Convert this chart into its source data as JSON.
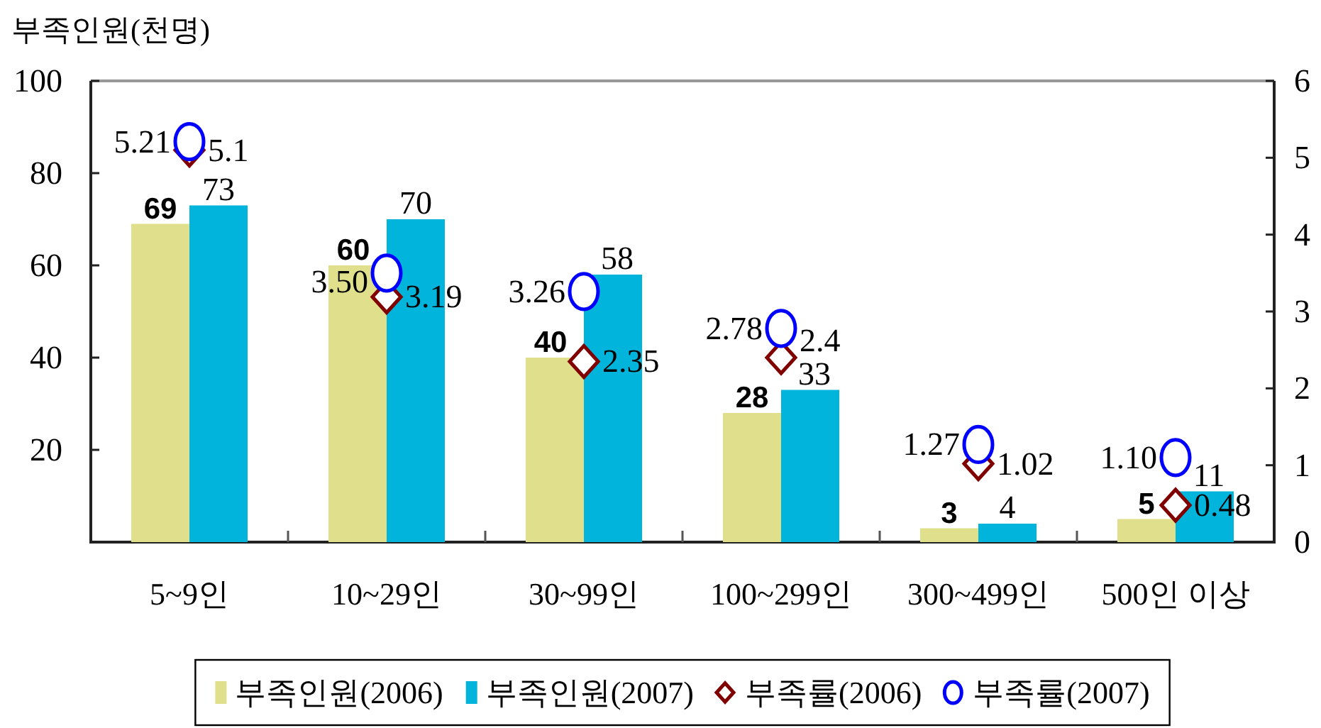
{
  "chart_data": {
    "type": "bar",
    "ylabel": "부족인원(천명)",
    "categories": [
      "5~9인",
      "10~29인",
      "30~99인",
      "100~299인",
      "300~499인",
      "500인 이상"
    ],
    "ylim": [
      0,
      100
    ],
    "yticks": [
      20,
      40,
      60,
      80,
      100
    ],
    "y2lim": [
      0,
      6
    ],
    "y2ticks": [
      0,
      1,
      2,
      3,
      4,
      5,
      6
    ],
    "legend": "bottom",
    "series": [
      {
        "name": "부족인원(2006)",
        "color": "#e0e08c",
        "values": [
          69,
          60,
          40,
          28,
          3,
          5
        ],
        "value_labels": [
          "69",
          "60",
          "40",
          "28",
          "3",
          "5"
        ]
      },
      {
        "name": "부족인원(2007)",
        "color": "#00b4dc",
        "values": [
          73,
          70,
          58,
          33,
          4,
          11
        ],
        "value_labels": [
          "73",
          "70",
          "58",
          "33",
          "4",
          "11"
        ]
      },
      {
        "name": "부족률(2006)",
        "type": "scatter",
        "axis": "y2",
        "marker": "diamond",
        "color": "#800000",
        "values": [
          5.1,
          3.19,
          2.35,
          2.4,
          1.02,
          0.48
        ],
        "value_labels": [
          "5.1",
          "3.19",
          "2.35",
          "2.4",
          "1.02",
          "0.48"
        ]
      },
      {
        "name": "부족률(2007)",
        "type": "scatter",
        "axis": "y2",
        "marker": "circle",
        "color": "#0000ff",
        "values": [
          5.21,
          3.5,
          3.26,
          2.78,
          1.27,
          1.1
        ],
        "value_labels": [
          "5.21",
          "3.50",
          "3.26",
          "2.78",
          "1.27",
          "1.10"
        ]
      }
    ]
  }
}
